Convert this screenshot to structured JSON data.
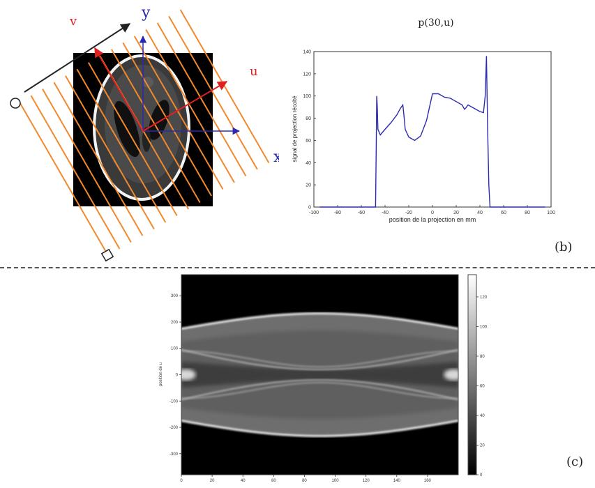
{
  "diagram": {
    "axis_labels": {
      "v": "v",
      "y": "y",
      "u": "u",
      "x": "x"
    },
    "colors": {
      "rays": "#f08a2c",
      "red_axes": "#e02020",
      "blue_axes": "#2a2ab0",
      "ellipse": "#ffffff"
    }
  },
  "panel_b": {
    "label": "(b)"
  },
  "panel_c": {
    "label": "(c)"
  },
  "chart_data": [
    {
      "type": "line",
      "title": "p(30,u)",
      "xlabel": "position de la projection en mm",
      "ylabel": "signal de projection récolté",
      "xlim": [
        -100,
        100
      ],
      "ylim": [
        0,
        140
      ],
      "x_ticks": [
        "-100",
        "-80",
        "-60",
        "-40",
        "-20",
        "0",
        "20",
        "40",
        "60",
        "80",
        "100"
      ],
      "y_ticks": [
        "0",
        "20",
        "40",
        "60",
        "80",
        "100",
        "120",
        "140"
      ],
      "series": [
        {
          "color": "#2b2bb0",
          "x": [
            -95,
            -48,
            -47.5,
            -47,
            -46.5,
            -46,
            -44,
            -40,
            -35,
            -30,
            -27,
            -25,
            -24,
            -23,
            -20,
            -15,
            -10,
            -5,
            0,
            5,
            10,
            15,
            20,
            25,
            27,
            28,
            30,
            35,
            40,
            43,
            44.5,
            45.5,
            46.5,
            47.5,
            48.5,
            55,
            95
          ],
          "y": [
            0,
            0,
            50,
            100,
            90,
            70,
            65,
            70,
            76,
            83,
            89,
            92,
            82,
            70,
            63,
            60,
            64,
            78,
            102,
            102,
            99,
            98,
            95,
            92,
            88,
            89,
            92,
            89,
            86,
            85,
            100,
            136,
            70,
            20,
            0,
            0,
            0
          ]
        }
      ]
    },
    {
      "type": "heatmap",
      "ylabel": "position de u",
      "xlim": [
        0,
        180
      ],
      "ylim": [
        -380,
        380
      ],
      "x_ticks": [
        "0",
        "20",
        "40",
        "60",
        "80",
        "100",
        "120",
        "140",
        "160"
      ],
      "y_ticks": [
        "300",
        "200",
        "100",
        "0",
        "-100",
        "-200",
        "-300"
      ],
      "colorbar_ticks": [
        "120",
        "100",
        "80",
        "60",
        "40",
        "20",
        "0"
      ],
      "colorbar_range": [
        0,
        135
      ]
    }
  ]
}
